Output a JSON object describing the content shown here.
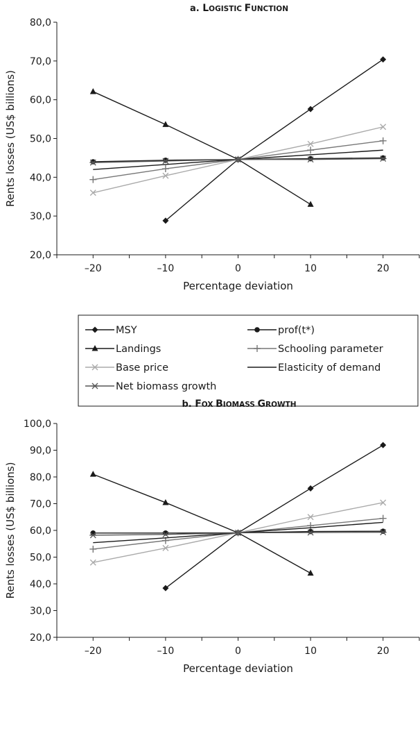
{
  "chart_data": [
    {
      "type": "line",
      "title": "a. Logistic function",
      "title_prefix": "a.",
      "title_text": "Logistic function",
      "xlabel": "Percentage deviation",
      "ylabel": "Rents losses (US$ billions)",
      "x": [
        -20,
        -10,
        0,
        10,
        20
      ],
      "x_tick_labels": [
        "–20",
        "–10",
        "0",
        "10",
        "20"
      ],
      "ylim": [
        20,
        80
      ],
      "y_ticks": [
        20,
        30,
        40,
        50,
        60,
        70,
        80
      ],
      "y_tick_labels": [
        "20,0",
        "30,0",
        "40,0",
        "50,0",
        "60,0",
        "70,0",
        "80,0"
      ],
      "grid": false,
      "series": [
        {
          "name": "MSY",
          "values": [
            null,
            28.8,
            44.6,
            57.6,
            70.4
          ]
        },
        {
          "name": "prof(t*)",
          "values": [
            44.0,
            44.4,
            44.6,
            44.8,
            45.0
          ]
        },
        {
          "name": "Landings",
          "values": [
            62.1,
            53.6,
            44.6,
            33.0,
            null
          ]
        },
        {
          "name": "Schooling parameter",
          "values": [
            39.4,
            42.2,
            44.6,
            47.0,
            49.4
          ]
        },
        {
          "name": "Base price",
          "values": [
            36.0,
            40.4,
            44.6,
            48.6,
            53.0
          ]
        },
        {
          "name": "Elasticity of demand",
          "values": [
            42.0,
            43.3,
            44.6,
            45.8,
            47.0
          ]
        },
        {
          "name": "Net biomass growth",
          "values": [
            43.8,
            44.2,
            44.6,
            44.6,
            44.8
          ]
        }
      ]
    },
    {
      "type": "line",
      "title": "b. Fox biomass growth",
      "title_prefix": "b.",
      "title_text": "Fox biomass growth",
      "xlabel": "Percentage deviation",
      "ylabel": "Rents losses (US$ billions)",
      "x": [
        -20,
        -10,
        0,
        10,
        20
      ],
      "x_tick_labels": [
        "–20",
        "–10",
        "0",
        "10",
        "20"
      ],
      "ylim": [
        20,
        100
      ],
      "y_ticks": [
        20,
        30,
        40,
        50,
        60,
        70,
        80,
        90,
        100
      ],
      "y_tick_labels": [
        "20,0",
        "30,0",
        "40,0",
        "50,0",
        "60,0",
        "70,0",
        "80,0",
        "90,0",
        "100,0"
      ],
      "grid": false,
      "series": [
        {
          "name": "MSY",
          "values": [
            null,
            38.4,
            59.1,
            75.7,
            91.9
          ]
        },
        {
          "name": "prof(t*)",
          "values": [
            59.0,
            59.0,
            59.1,
            59.6,
            59.7
          ]
        },
        {
          "name": "Landings",
          "values": [
            81.0,
            70.4,
            59.1,
            44.0,
            null
          ]
        },
        {
          "name": "Schooling parameter",
          "values": [
            53.0,
            56.2,
            59.1,
            61.8,
            64.5
          ]
        },
        {
          "name": "Base price",
          "values": [
            48.0,
            53.4,
            59.1,
            65.0,
            70.4
          ]
        },
        {
          "name": "Elasticity of demand",
          "values": [
            55.4,
            57.2,
            59.1,
            61.0,
            63.0
          ]
        },
        {
          "name": "Net biomass growth",
          "values": [
            58.2,
            58.5,
            59.1,
            59.2,
            59.3
          ]
        }
      ]
    }
  ],
  "legend": {
    "entries": [
      "MSY",
      "prof(t*)",
      "Landings",
      "Schooling parameter",
      "Base price",
      "Elasticity of demand",
      "Net biomass growth"
    ]
  },
  "series_styles": {
    "MSY": {
      "color": "#1a1a1a",
      "marker": "diamond-icon"
    },
    "prof(t*)": {
      "color": "#1a1a1a",
      "marker": "circle-icon"
    },
    "Landings": {
      "color": "#1a1a1a",
      "marker": "triangle-icon"
    },
    "Schooling parameter": {
      "color": "#777777",
      "marker": "plus-icon"
    },
    "Base price": {
      "color": "#aaaaaa",
      "marker": "x-icon"
    },
    "Elasticity of demand": {
      "color": "#1a1a1a",
      "marker": "none"
    },
    "Net biomass growth": {
      "color": "#555555",
      "marker": "star-icon"
    }
  }
}
